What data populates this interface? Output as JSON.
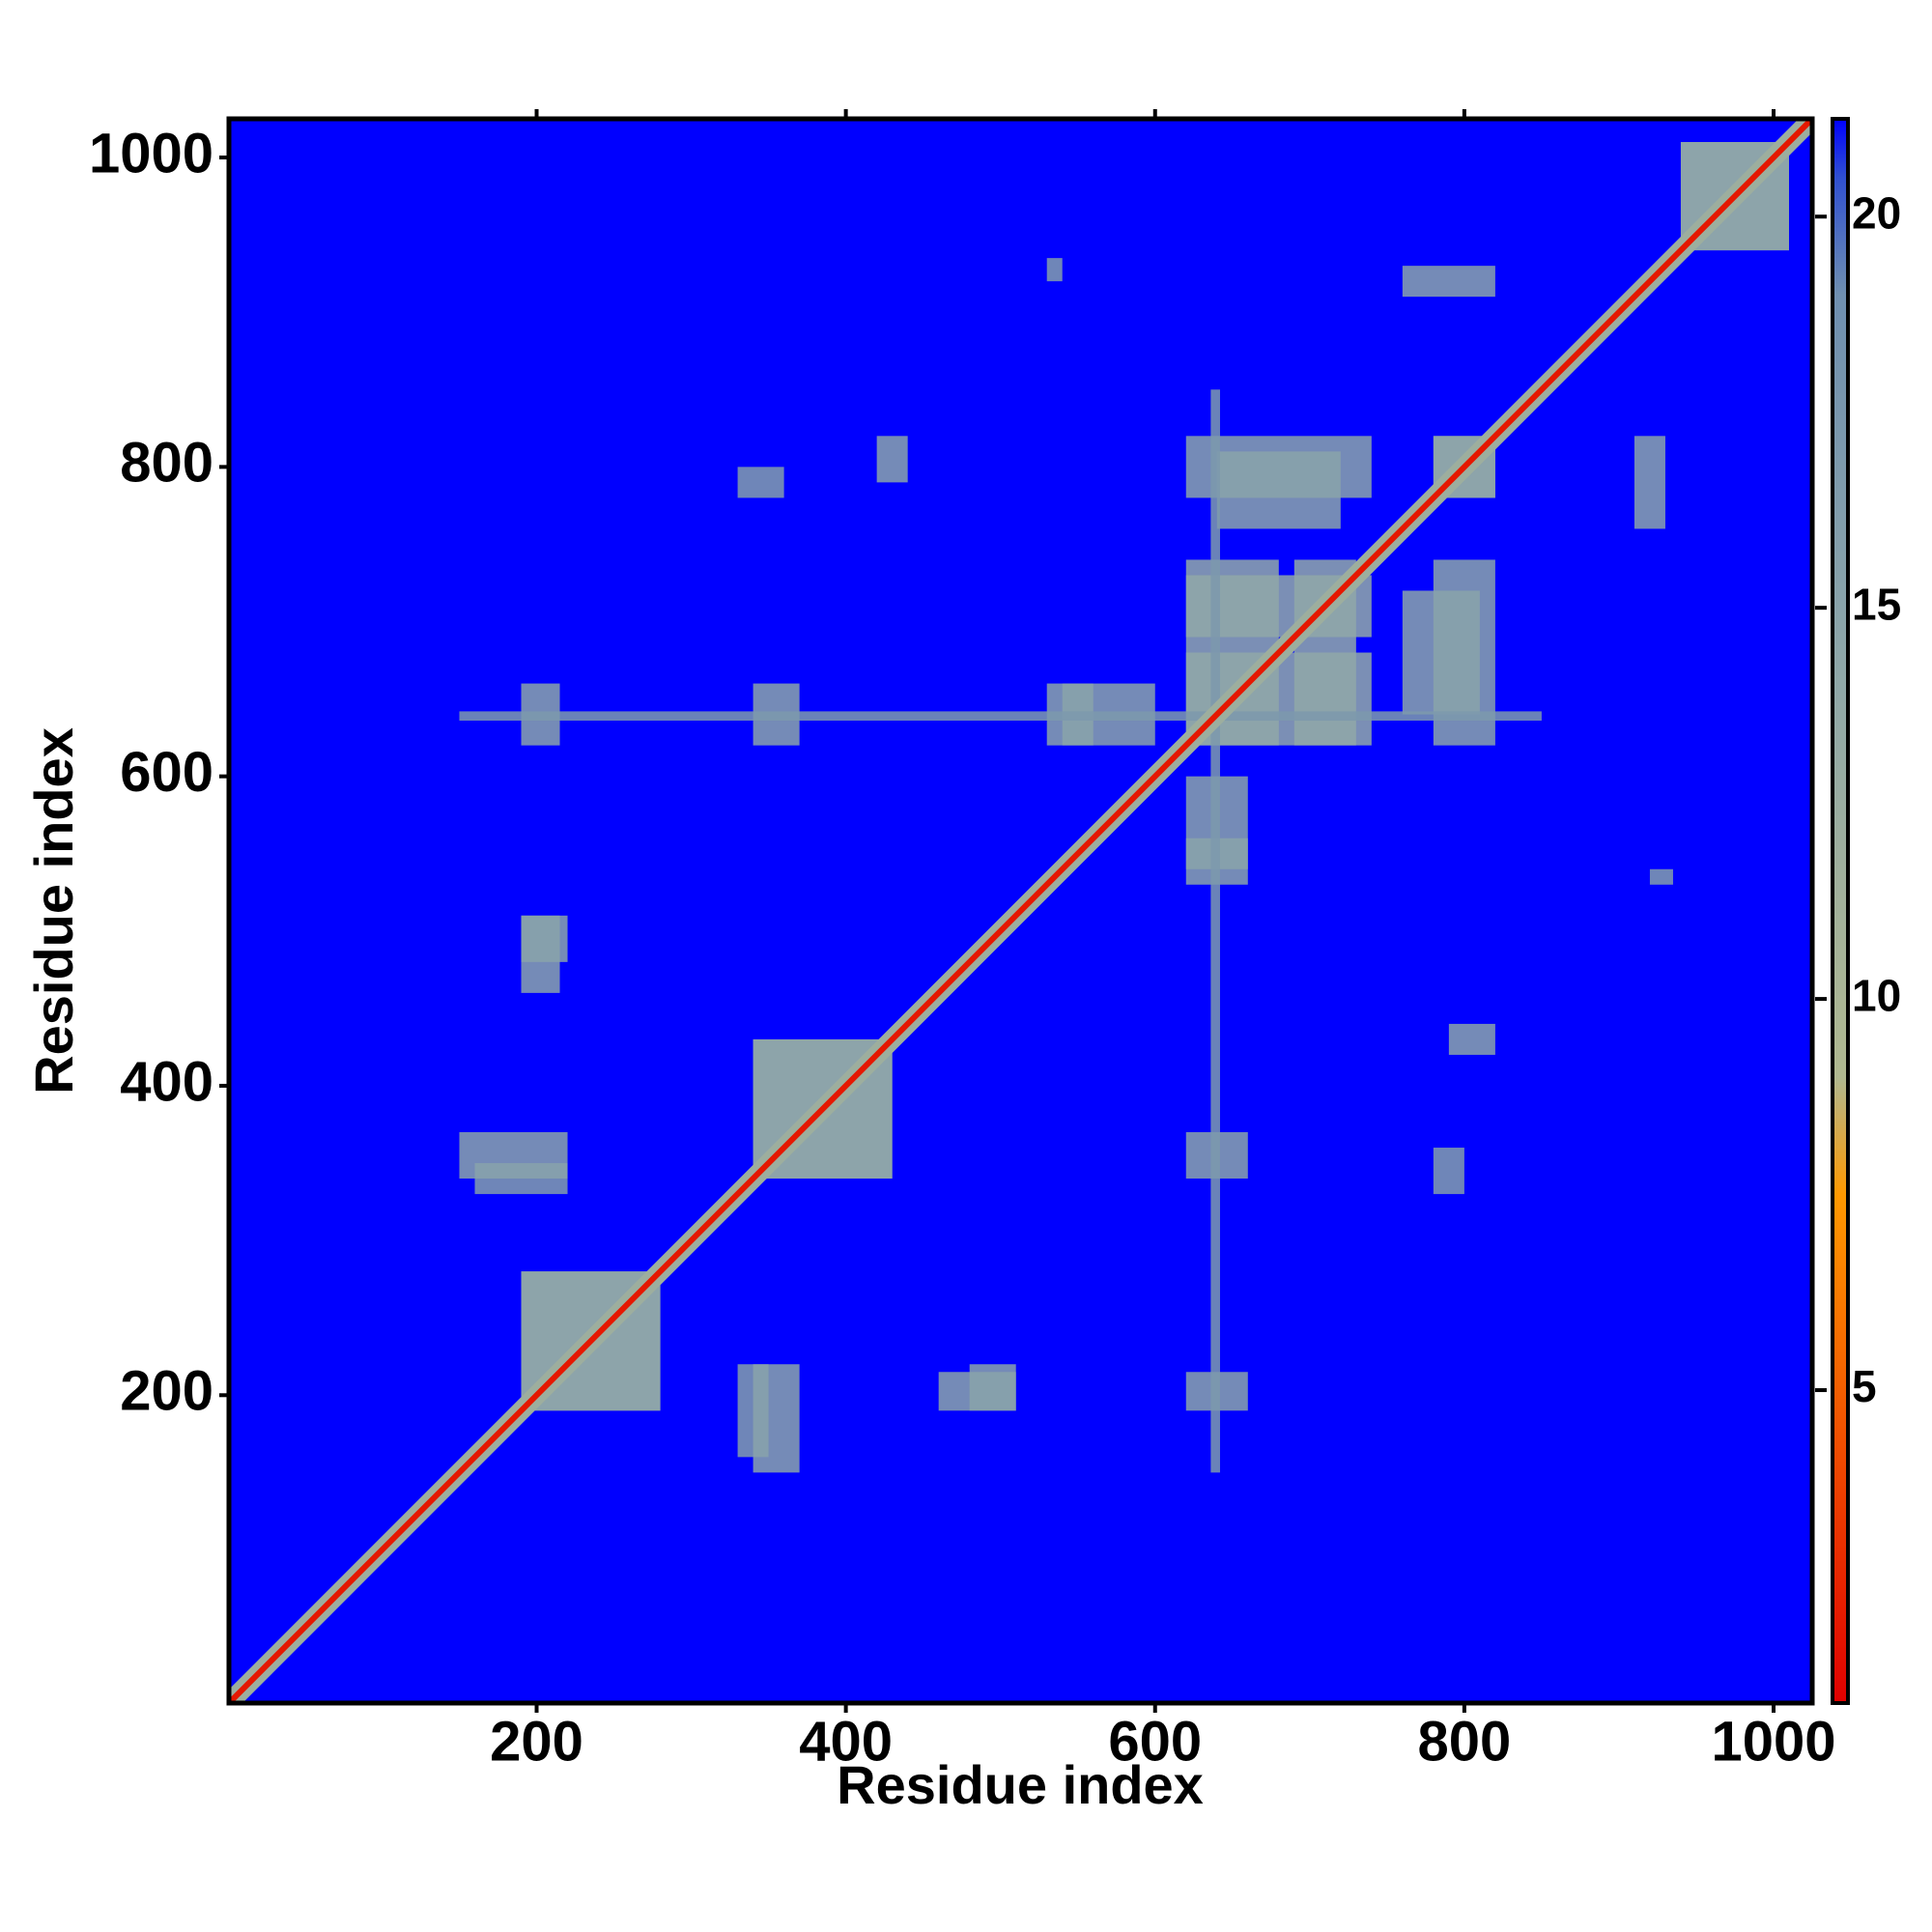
{
  "chart_data": {
    "type": "heatmap",
    "x_label": "Residue index",
    "y_label": "Residue index",
    "xlim": [
      1,
      1025
    ],
    "ylim": [
      1,
      1025
    ],
    "xticks": [
      200,
      400,
      600,
      800,
      1000
    ],
    "yticks": [
      200,
      400,
      600,
      800,
      1000
    ],
    "clim": [
      1,
      21.25
    ],
    "cticks": [
      5,
      10,
      15,
      20
    ],
    "colormap": [
      {
        "value": 1,
        "color": "#e00000"
      },
      {
        "value": 7.5,
        "color": "#ff9900"
      },
      {
        "value": 9,
        "color": "#b0b890"
      },
      {
        "value": 14,
        "color": "#90a8a8"
      },
      {
        "value": 19,
        "color": "#6f8fb0"
      },
      {
        "value": 20.5,
        "color": "#3050d0"
      },
      {
        "value": 21.25,
        "color": "#0000ff"
      }
    ],
    "background_value": 21.25,
    "diagonal_value": 2,
    "diagonal_band_value": 12,
    "symmetric": true,
    "regions": [
      {
        "x": [
          190,
          280
        ],
        "y": [
          190,
          280
        ],
        "value": 14
      },
      {
        "x": [
          160,
          220
        ],
        "y": [
          330,
          350
        ],
        "value": 16
      },
      {
        "x": [
          340,
          430
        ],
        "y": [
          340,
          430
        ],
        "value": 14
      },
      {
        "x": [
          190,
          215
        ],
        "y": [
          460,
          510
        ],
        "value": 15
      },
      {
        "x": [
          190,
          215
        ],
        "y": [
          620,
          660
        ],
        "value": 15
      },
      {
        "x": [
          340,
          370
        ],
        "y": [
          620,
          660
        ],
        "value": 15
      },
      {
        "x": [
          530,
          560
        ],
        "y": [
          620,
          660
        ],
        "value": 15
      },
      {
        "x": [
          620,
          680
        ],
        "y": [
          620,
          740
        ],
        "value": 14
      },
      {
        "x": [
          690,
          730
        ],
        "y": [
          620,
          740
        ],
        "value": 14
      },
      {
        "x": [
          780,
          820
        ],
        "y": [
          620,
          740
        ],
        "value": 15
      },
      {
        "x": [
          640,
          720
        ],
        "y": [
          760,
          810
        ],
        "value": 15
      },
      {
        "x": [
          780,
          820
        ],
        "y": [
          780,
          820
        ],
        "value": 14
      },
      {
        "x": [
          150,
          220
        ],
        "y": [
          340,
          370
        ],
        "value": 15
      },
      {
        "x": [
          190,
          220
        ],
        "y": [
          480,
          510
        ],
        "value": 15
      },
      {
        "x": [
          620,
          660
        ],
        "y": [
          540,
          600
        ],
        "value": 15
      },
      {
        "x": [
          330,
          360
        ],
        "y": [
          780,
          800
        ],
        "value": 16
      },
      {
        "x": [
          760,
          820
        ],
        "y": [
          910,
          930
        ],
        "value": 15
      },
      {
        "x": [
          940,
          1010
        ],
        "y": [
          940,
          1010
        ],
        "value": 14
      },
      {
        "x": [
          530,
          540
        ],
        "y": [
          920,
          935
        ],
        "value": 16
      },
      {
        "x": [
          420,
          440
        ],
        "y": [
          790,
          820
        ],
        "value": 15
      },
      {
        "x": [
          150,
          850
        ],
        "y": [
          636,
          642
        ],
        "value": 17
      }
    ]
  }
}
